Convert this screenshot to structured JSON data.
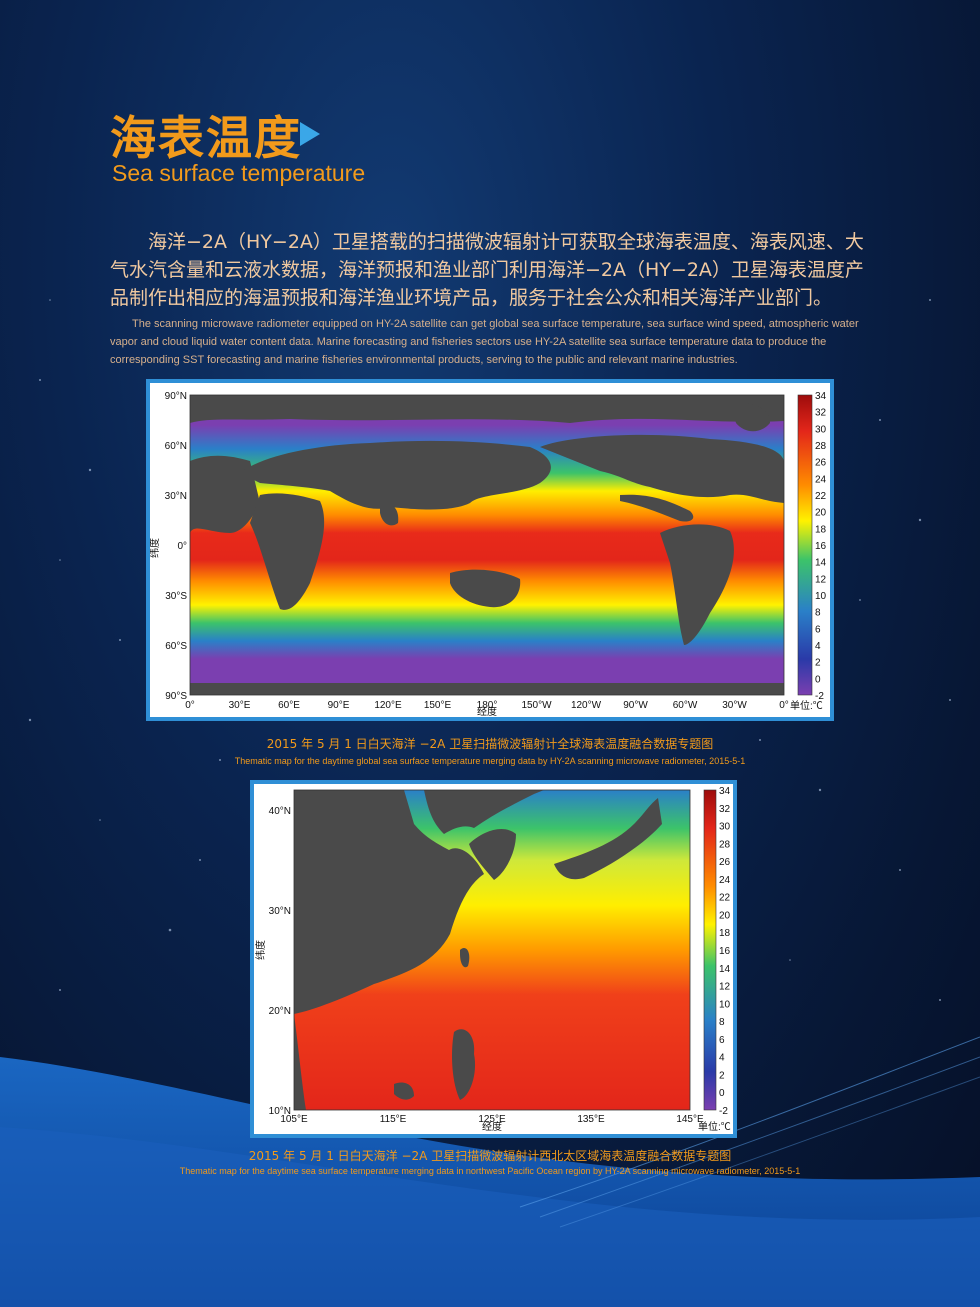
{
  "title_cn": "海表温度",
  "title_en": "Sea surface temperature",
  "paragraph_cn": "海洋−2A（HY−2A）卫星搭载的扫描微波辐射计可获取全球海表温度、海表风速、大气水汽含量和云液水数据，海洋预报和渔业部门利用海洋−2A（HY−2A）卫星海表温度产品制作出相应的海温预报和海洋渔业环境产品，服务于社会公众和相关海洋产业部门。",
  "paragraph_en": "The scanning microwave radiometer equipped on HY-2A satellite can get global sea surface temperature, sea surface wind speed, atmospheric water vapor and cloud liquid water content data. Marine forecasting and fisheries sectors use HY-2A satellite sea surface temperature data to produce the corresponding SST forecasting and marine fisheries environmental  products, serving to the public and relevant marine industries.",
  "map1": {
    "lat_ticks": [
      "90°N",
      "60°N",
      "30°N",
      "0°",
      "30°S",
      "60°S",
      "90°S"
    ],
    "lon_ticks": [
      "0°",
      "30°E",
      "60°E",
      "90°E",
      "120°E",
      "150°E",
      "180°",
      "150°W",
      "120°W",
      "90°W",
      "60°W",
      "30°W",
      "0°"
    ],
    "ylabel": "纬度",
    "xlabel": "经度",
    "colorbar_ticks": [
      "34",
      "32",
      "30",
      "28",
      "26",
      "24",
      "22",
      "20",
      "18",
      "16",
      "14",
      "12",
      "10",
      "8",
      "6",
      "4",
      "2",
      "0",
      "-2"
    ],
    "unit": "单位:℃",
    "caption_cn": "2015 年 5 月 1 日白天海洋 −2A 卫星扫描微波辐射计全球海表温度融合数据专题图",
    "caption_en": "Thematic map for the daytime global sea surface temperature merging data by HY-2A scanning microwave radiometer, 2015-5-1"
  },
  "map2": {
    "lat_ticks": [
      "40°N",
      "30°N",
      "20°N",
      "10°N"
    ],
    "lon_ticks": [
      "105°E",
      "115°E",
      "125°E",
      "135°E",
      "145°E"
    ],
    "ylabel": "纬度",
    "xlabel": "经度",
    "colorbar_ticks": [
      "34",
      "32",
      "30",
      "28",
      "26",
      "24",
      "22",
      "20",
      "18",
      "16",
      "14",
      "12",
      "10",
      "8",
      "6",
      "4",
      "2",
      "0",
      "-2"
    ],
    "unit": "单位:℃",
    "caption_cn": "2015 年 5 月 1 日白天海洋 −2A 卫星扫描微波辐射计西北太区域海表温度融合数据专题图",
    "caption_en": "Thematic map for the daytime sea surface temperature merging data in northwest Pacific Ocean region by HY-2A scanning microwave radiometer, 2015-5-1"
  },
  "colors": {
    "accent": "#f29a1b",
    "frame": "#2f8fd6",
    "land": "#4a4a4a"
  }
}
